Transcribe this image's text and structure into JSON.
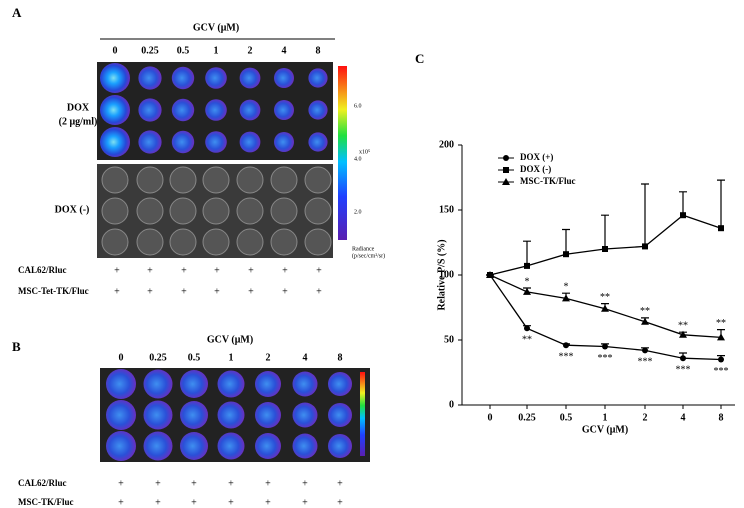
{
  "panel_a": {
    "label": "A",
    "title": "GCV (μM)",
    "columns": [
      "0",
      "0.25",
      "0.5",
      "1",
      "2",
      "4",
      "8"
    ],
    "row_label_line1": "DOX",
    "row_label_line2": "(2 μg/ml)",
    "row_label_2": "DOX (-)",
    "colorbar_ticks": [
      "6.0",
      "4.0",
      "2.0"
    ],
    "colorbar_unit": "x10⁵",
    "colorbar_title": "Radiance",
    "colorbar_subtitle": "(p/sec/cm²/sr)",
    "rows": [
      {
        "label": "CAL62/Rluc",
        "marks": [
          "+",
          "+",
          "+",
          "+",
          "+",
          "+",
          "+"
        ]
      },
      {
        "label": "MSC-Tet-TK/Fluc",
        "marks": [
          "+",
          "+",
          "+",
          "+",
          "+",
          "+",
          "+"
        ]
      }
    ]
  },
  "panel_b": {
    "label": "B",
    "title": "GCV (μM)",
    "columns": [
      "0",
      "0.25",
      "0.5",
      "1",
      "2",
      "4",
      "8"
    ],
    "rows": [
      {
        "label": "CAL62/Rluc",
        "marks": [
          "+",
          "+",
          "+",
          "+",
          "+",
          "+",
          "+"
        ]
      },
      {
        "label": "MSC-TK/Fluc",
        "marks": [
          "+",
          "+",
          "+",
          "+",
          "+",
          "+",
          "+"
        ]
      }
    ]
  },
  "panel_c_label": "C",
  "chart_data": {
    "type": "line",
    "xlabel": "GCV (μM)",
    "ylabel": "Relative P/S (%)",
    "categories": [
      "0",
      "0.25",
      "0.5",
      "1",
      "2",
      "4",
      "8"
    ],
    "ylim": [
      0,
      200
    ],
    "yticks": [
      0,
      50,
      100,
      150,
      200
    ],
    "series": [
      {
        "name": "DOX (+)",
        "marker": "circle",
        "color": "#000000",
        "values": [
          100,
          59,
          46,
          45,
          42,
          36,
          35
        ],
        "errors": [
          0,
          2,
          1,
          2,
          2,
          4,
          3
        ],
        "annotations": [
          null,
          "**",
          "***",
          "***",
          "***",
          "***",
          "***"
        ],
        "annotation_position": "below"
      },
      {
        "name": "DOX (-)",
        "marker": "square",
        "color": "#000000",
        "values": [
          100,
          107,
          116,
          120,
          122,
          146,
          136
        ],
        "errors": [
          0,
          19,
          19,
          26,
          48,
          18,
          37
        ]
      },
      {
        "name": "MSC-TK/Fluc",
        "marker": "triangle",
        "color": "#000000",
        "values": [
          100,
          87,
          82,
          74,
          64,
          54,
          52
        ],
        "errors": [
          0,
          3,
          4,
          4,
          3,
          2,
          6
        ],
        "annotations": [
          null,
          "*",
          "*",
          "**",
          "**",
          "**",
          "**"
        ],
        "annotation_position": "above"
      }
    ]
  }
}
